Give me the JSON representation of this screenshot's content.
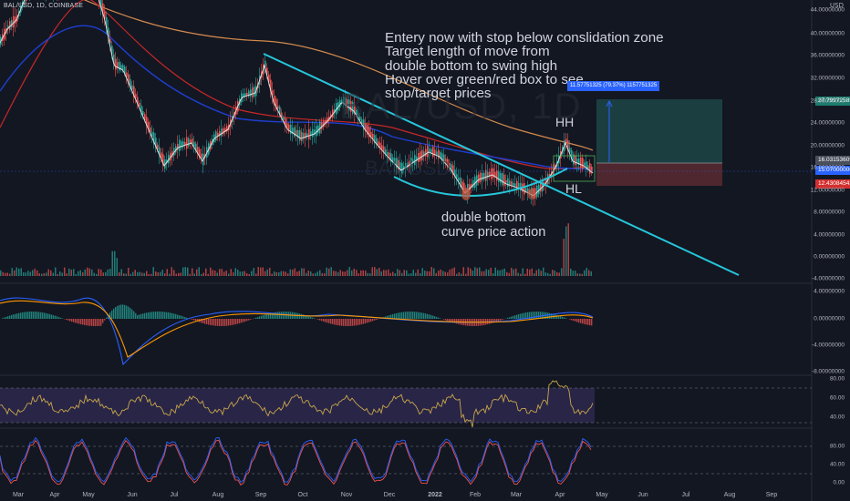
{
  "chart_header": {
    "symbol": "BAL/USD, 1D, COINBASE"
  },
  "watermark": {
    "main": "BAL/USD, 1D",
    "sub": "BAL/USD"
  },
  "annotations": {
    "main_note": "Entery now with stop below conslidation zone\nTarget length of move from\ndouble bottom to swing high\nHover over green/red box to see\nstop/target prices",
    "double_bottom": "double bottom\ncurve price action",
    "higher_high": "HH",
    "higher_low": "HL"
  },
  "price_axis": {
    "unit": "USD",
    "ticks": [
      "44.00000000",
      "40.00000000",
      "36.00000000",
      "32.00000000",
      "28.00000000",
      "24.00000000",
      "20.00000000",
      "16.00000000",
      "12.00000000",
      "8.00000000",
      "4.00000000",
      "0.00000000",
      "-4.00000000"
    ]
  },
  "macd_axis": {
    "ticks": [
      "4.00000000",
      "0.00000000",
      "-4.00000000",
      "-8.00000000"
    ]
  },
  "rsi_axis": {
    "ticks": [
      "80.00",
      "60.00",
      "40.00"
    ]
  },
  "stoch_axis": {
    "ticks": [
      "80.00",
      "40.00",
      "0.00"
    ]
  },
  "time_axis": {
    "ticks": [
      "Mar",
      "Apr",
      "May",
      "Jun",
      "Jul",
      "Aug",
      "Sep",
      "Oct",
      "Nov",
      "Dec",
      "2022",
      "Feb",
      "Mar",
      "Apr",
      "May",
      "Jun",
      "Jul",
      "Aug",
      "Sep"
    ]
  },
  "price_labels": {
    "target": "27.79972585",
    "current_a": "16.03153609",
    "current_b": "15.07000000",
    "stop": "12.43084543"
  },
  "position_tool": {
    "range_label": "11.57751325 (79.37%) 1157751325"
  },
  "colors": {
    "background": "#131722",
    "candle_up": "#26a69a",
    "candle_down": "#ef5350",
    "trendline": "#26c6da",
    "ma_white": "#e0e0e0",
    "ma_red": "#c62828",
    "ma_blue": "#1e3fd0",
    "ma_orange": "#d28a4d",
    "target_zone": "#1f4e4c",
    "stop_zone": "#5a2a30",
    "rsi_band": "#3b3266",
    "rsi_line": "#c9a64a",
    "stoch_k": "#2962ff",
    "stoch_d": "#ef5350"
  }
}
